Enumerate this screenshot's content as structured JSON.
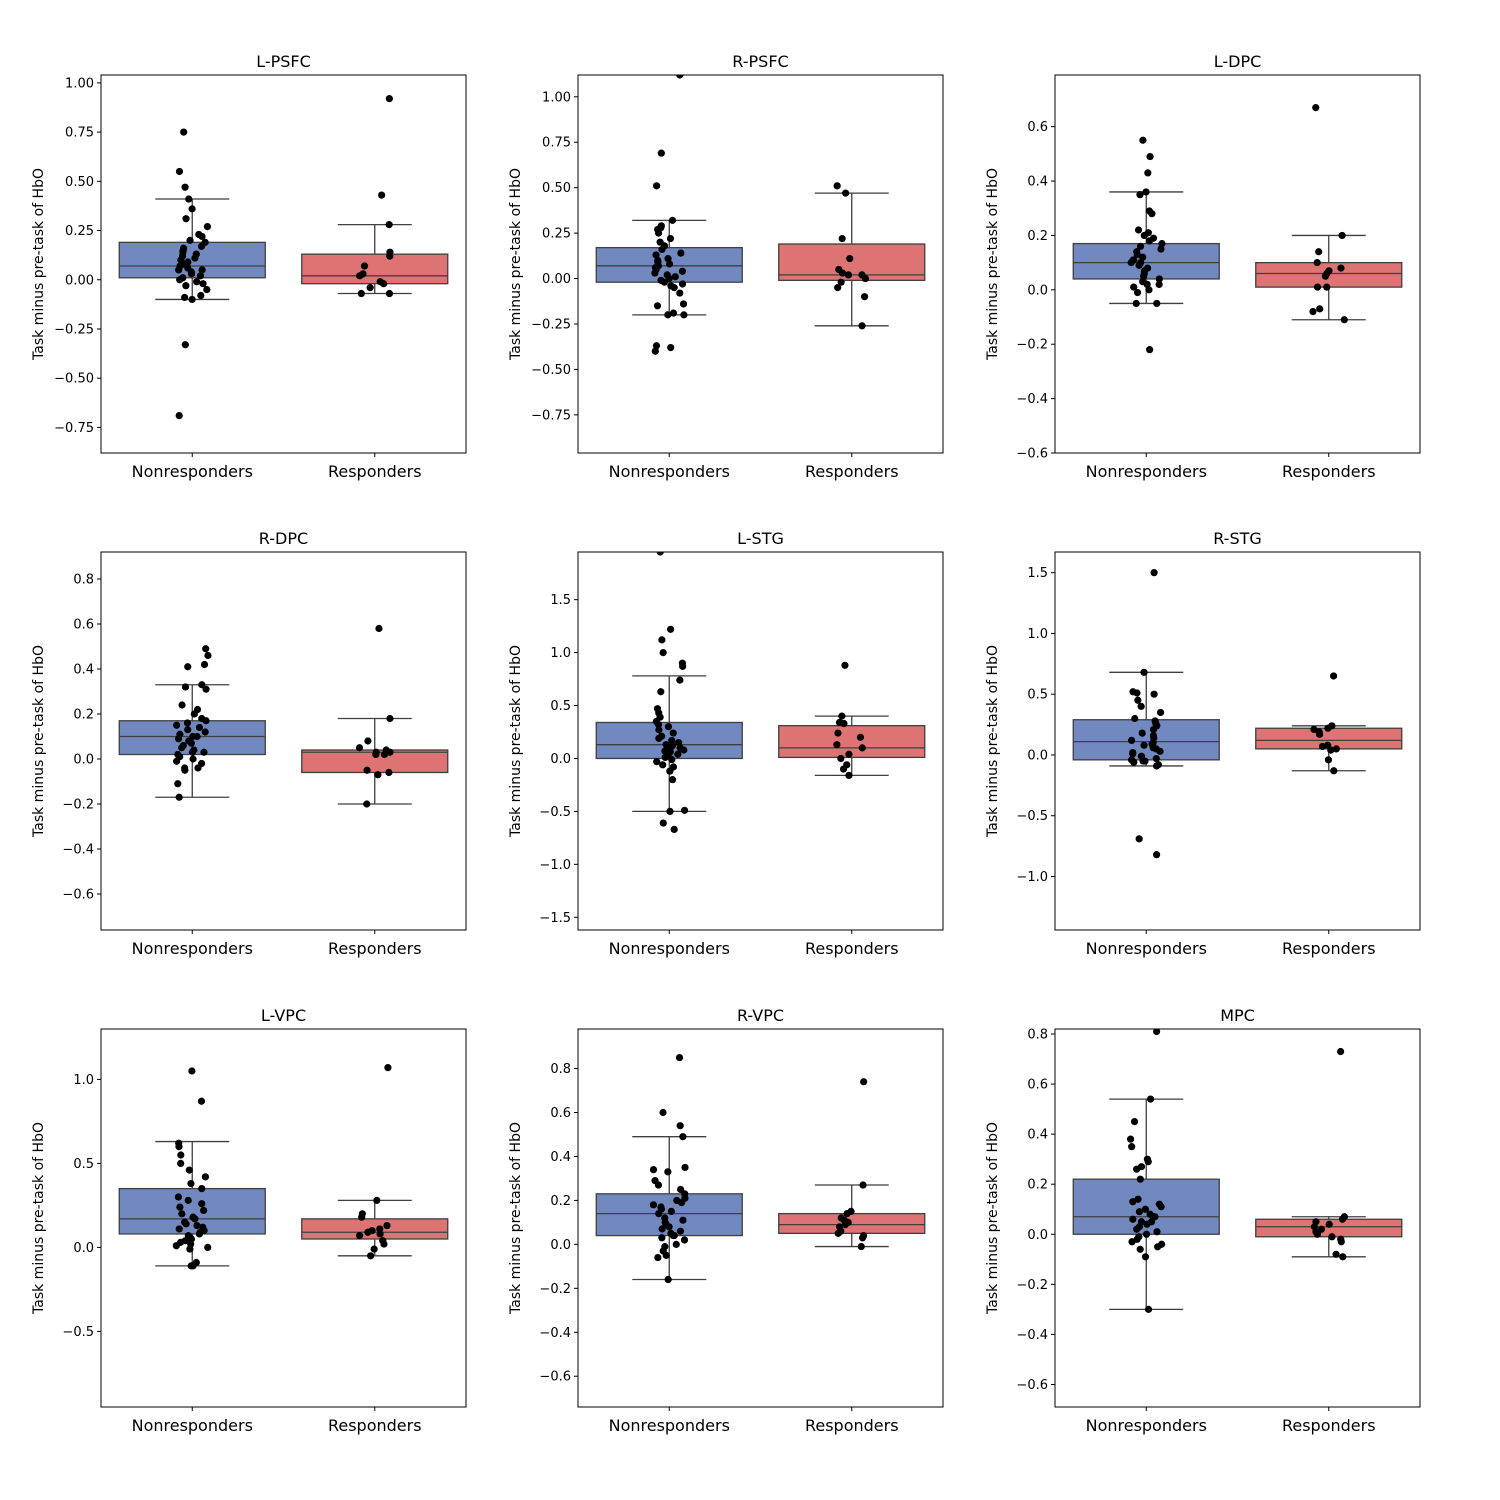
{
  "colors": {
    "nonresponders": "#7189bf",
    "responders": "#dd7373",
    "points": "#000000",
    "box_edge": "#3f3f3f"
  },
  "chart_data": [
    {
      "type": "box",
      "title": "L-PSFC",
      "ylabel": "Task minus pre-task of HbO",
      "categories": [
        "Nonresponders",
        "Responders"
      ],
      "ylim": [
        -0.88,
        1.04
      ],
      "yticks": [
        -0.75,
        -0.5,
        -0.25,
        0.0,
        0.25,
        0.5,
        0.75,
        1.0
      ],
      "ytick_labels": [
        "−0.75",
        "−0.50",
        "−0.25",
        "0.00",
        "0.25",
        "0.50",
        "0.75",
        "1.00"
      ],
      "boxes": [
        {
          "whislo": -0.1,
          "q1": 0.01,
          "med": 0.07,
          "q3": 0.19,
          "whishi": 0.41
        },
        {
          "whislo": -0.07,
          "q1": -0.02,
          "med": 0.02,
          "q3": 0.13,
          "whishi": 0.28
        }
      ],
      "points": [
        [
          0.75,
          0.55,
          0.47,
          0.41,
          0.36,
          0.31,
          0.27,
          0.23,
          0.22,
          0.2,
          0.19,
          0.17,
          0.16,
          0.15,
          0.14,
          0.13,
          0.12,
          0.11,
          0.1,
          0.09,
          0.08,
          0.07,
          0.06,
          0.05,
          0.05,
          0.04,
          0.03,
          0.02,
          0.01,
          0.0,
          -0.01,
          -0.02,
          -0.03,
          -0.05,
          -0.08,
          -0.09,
          -0.1,
          -0.33,
          -0.69
        ],
        [
          0.92,
          0.43,
          0.28,
          0.14,
          0.12,
          0.07,
          0.03,
          0.02,
          -0.01,
          -0.02,
          -0.04,
          -0.07,
          -0.07
        ]
      ]
    },
    {
      "type": "box",
      "title": "R-PSFC",
      "ylabel": "Task minus pre-task of HbO",
      "categories": [
        "Nonresponders",
        "Responders"
      ],
      "ylim": [
        -0.96,
        1.12
      ],
      "yticks": [
        -0.75,
        -0.5,
        -0.25,
        0.0,
        0.25,
        0.5,
        0.75,
        1.0
      ],
      "ytick_labels": [
        "−0.75",
        "−0.50",
        "−0.25",
        "0.00",
        "0.25",
        "0.50",
        "0.75",
        "1.00"
      ],
      "boxes": [
        {
          "whislo": -0.2,
          "q1": -0.02,
          "med": 0.07,
          "q3": 0.17,
          "whishi": 0.32
        },
        {
          "whislo": -0.26,
          "q1": -0.01,
          "med": 0.02,
          "q3": 0.19,
          "whishi": 0.47
        }
      ],
      "points": [
        [
          1.12,
          0.69,
          0.51,
          0.32,
          0.29,
          0.28,
          0.27,
          0.25,
          0.22,
          0.2,
          0.18,
          0.16,
          0.14,
          0.13,
          0.11,
          0.1,
          0.09,
          0.08,
          0.07,
          0.06,
          0.05,
          0.04,
          0.03,
          0.02,
          0.01,
          0.0,
          -0.01,
          -0.02,
          -0.03,
          -0.04,
          -0.05,
          -0.08,
          -0.14,
          -0.15,
          -0.19,
          -0.2,
          -0.2,
          -0.37,
          -0.38,
          -0.4
        ],
        [
          0.51,
          0.47,
          0.22,
          0.11,
          0.05,
          0.03,
          0.02,
          0.02,
          0.0,
          -0.02,
          -0.05,
          -0.1,
          -0.26
        ]
      ]
    },
    {
      "type": "box",
      "title": "L-DPC",
      "ylabel": "Task minus pre-task of HbO",
      "categories": [
        "Nonresponders",
        "Responders"
      ],
      "ylim": [
        -0.6,
        0.79
      ],
      "yticks": [
        -0.6,
        -0.4,
        -0.2,
        0.0,
        0.2,
        0.4,
        0.6
      ],
      "ytick_labels": [
        "−0.6",
        "−0.4",
        "−0.2",
        "0.0",
        "0.2",
        "0.4",
        "0.6"
      ],
      "boxes": [
        {
          "whislo": -0.05,
          "q1": 0.04,
          "med": 0.1,
          "q3": 0.17,
          "whishi": 0.36
        },
        {
          "whislo": -0.11,
          "q1": 0.01,
          "med": 0.06,
          "q3": 0.1,
          "whishi": 0.2
        }
      ],
      "points": [
        [
          0.55,
          0.49,
          0.43,
          0.36,
          0.35,
          0.29,
          0.28,
          0.22,
          0.21,
          0.2,
          0.19,
          0.18,
          0.17,
          0.16,
          0.15,
          0.14,
          0.13,
          0.12,
          0.11,
          0.11,
          0.1,
          0.1,
          0.09,
          0.08,
          0.07,
          0.06,
          0.05,
          0.04,
          0.03,
          0.02,
          0.02,
          0.01,
          0.0,
          -0.01,
          -0.05,
          -0.05,
          -0.22
        ],
        [
          0.67,
          0.2,
          0.14,
          0.1,
          0.08,
          0.07,
          0.06,
          0.05,
          0.01,
          0.01,
          -0.07,
          -0.08,
          -0.11
        ]
      ]
    },
    {
      "type": "box",
      "title": "R-DPC",
      "ylabel": "Task minus pre-task of HbO",
      "categories": [
        "Nonresponders",
        "Responders"
      ],
      "ylim": [
        -0.76,
        0.92
      ],
      "yticks": [
        -0.6,
        -0.4,
        -0.2,
        0.0,
        0.2,
        0.4,
        0.6,
        0.8
      ],
      "ytick_labels": [
        "−0.6",
        "−0.4",
        "−0.2",
        "0.0",
        "0.2",
        "0.4",
        "0.6",
        "0.8"
      ],
      "boxes": [
        {
          "whislo": -0.17,
          "q1": 0.02,
          "med": 0.1,
          "q3": 0.17,
          "whishi": 0.33
        },
        {
          "whislo": -0.2,
          "q1": -0.06,
          "med": 0.03,
          "q3": 0.04,
          "whishi": 0.18
        }
      ],
      "points": [
        [
          0.49,
          0.46,
          0.42,
          0.41,
          0.33,
          0.32,
          0.31,
          0.24,
          0.22,
          0.2,
          0.18,
          0.17,
          0.16,
          0.15,
          0.14,
          0.13,
          0.12,
          0.11,
          0.1,
          0.1,
          0.09,
          0.08,
          0.07,
          0.06,
          0.05,
          0.04,
          0.03,
          0.03,
          0.02,
          0.01,
          0.0,
          -0.01,
          -0.02,
          -0.04,
          -0.04,
          -0.05,
          -0.11,
          -0.17
        ],
        [
          0.58,
          0.18,
          0.08,
          0.05,
          0.04,
          0.03,
          0.03,
          0.02,
          0.02,
          -0.05,
          -0.06,
          -0.07,
          -0.2
        ]
      ]
    },
    {
      "type": "box",
      "title": "L-STG",
      "ylabel": "Task minus pre-task of HbO",
      "categories": [
        "Nonresponders",
        "Responders"
      ],
      "ylim": [
        -1.62,
        1.95
      ],
      "yticks": [
        -1.5,
        -1.0,
        -0.5,
        0.0,
        0.5,
        1.0,
        1.5
      ],
      "ytick_labels": [
        "−1.5",
        "−1.0",
        "−0.5",
        "0.0",
        "0.5",
        "1.0",
        "1.5"
      ],
      "boxes": [
        {
          "whislo": -0.5,
          "q1": 0.0,
          "med": 0.13,
          "q3": 0.34,
          "whishi": 0.78
        },
        {
          "whislo": -0.16,
          "q1": 0.01,
          "med": 0.1,
          "q3": 0.31,
          "whishi": 0.4
        }
      ],
      "points": [
        [
          1.95,
          1.22,
          1.12,
          1.0,
          0.9,
          0.87,
          0.74,
          0.63,
          0.47,
          0.43,
          0.39,
          0.35,
          0.32,
          0.3,
          0.27,
          0.24,
          0.21,
          0.19,
          0.17,
          0.15,
          0.13,
          0.12,
          0.1,
          0.09,
          0.08,
          0.07,
          0.06,
          0.04,
          0.03,
          0.01,
          -0.01,
          -0.03,
          -0.06,
          -0.08,
          -0.12,
          -0.2,
          -0.49,
          -0.5,
          -0.61,
          -0.67
        ],
        [
          0.88,
          0.4,
          0.34,
          0.33,
          0.24,
          0.2,
          0.13,
          0.1,
          0.04,
          0.0,
          -0.06,
          -0.1,
          -0.16
        ]
      ]
    },
    {
      "type": "box",
      "title": "R-STG",
      "ylabel": "Task minus pre-task of HbO",
      "categories": [
        "Nonresponders",
        "Responders"
      ],
      "ylim": [
        -1.44,
        1.67
      ],
      "yticks": [
        -1.0,
        -0.5,
        0.0,
        0.5,
        1.0,
        1.5
      ],
      "ytick_labels": [
        "−1.0",
        "−0.5",
        "0.0",
        "0.5",
        "1.0",
        "1.5"
      ],
      "boxes": [
        {
          "whislo": -0.09,
          "q1": -0.04,
          "med": 0.11,
          "q3": 0.29,
          "whishi": 0.68
        },
        {
          "whislo": -0.13,
          "q1": 0.05,
          "med": 0.12,
          "q3": 0.22,
          "whishi": 0.24
        }
      ],
      "points": [
        [
          1.5,
          0.68,
          0.52,
          0.51,
          0.5,
          0.45,
          0.4,
          0.35,
          0.3,
          0.28,
          0.26,
          0.24,
          0.21,
          0.18,
          0.16,
          0.14,
          0.12,
          0.1,
          0.09,
          0.08,
          0.06,
          0.05,
          0.03,
          0.02,
          0.01,
          -0.01,
          -0.03,
          -0.04,
          -0.05,
          -0.05,
          -0.06,
          -0.08,
          -0.09,
          -0.69,
          -0.82
        ],
        [
          0.65,
          0.24,
          0.22,
          0.21,
          0.19,
          0.17,
          0.08,
          0.07,
          0.05,
          0.04,
          -0.04,
          -0.13
        ]
      ]
    },
    {
      "type": "box",
      "title": "L-VPC",
      "ylabel": "Task minus pre-task of HbO",
      "categories": [
        "Nonresponders",
        "Responders"
      ],
      "ylim": [
        -0.95,
        1.3
      ],
      "yticks": [
        -0.5,
        0.0,
        0.5,
        1.0
      ],
      "ytick_labels": [
        "−0.5",
        "0.0",
        "0.5",
        "1.0"
      ],
      "boxes": [
        {
          "whislo": -0.11,
          "q1": 0.08,
          "med": 0.17,
          "q3": 0.35,
          "whishi": 0.63
        },
        {
          "whislo": -0.05,
          "q1": 0.05,
          "med": 0.09,
          "q3": 0.17,
          "whishi": 0.28
        }
      ],
      "points": [
        [
          1.05,
          0.87,
          0.62,
          0.6,
          0.55,
          0.5,
          0.46,
          0.42,
          0.38,
          0.35,
          0.3,
          0.28,
          0.26,
          0.24,
          0.22,
          0.2,
          0.18,
          0.17,
          0.15,
          0.14,
          0.13,
          0.12,
          0.11,
          0.1,
          0.09,
          0.08,
          0.07,
          0.06,
          0.05,
          0.04,
          0.03,
          0.02,
          0.01,
          0.0,
          -0.01,
          -0.09,
          -0.11,
          -0.11
        ],
        [
          1.07,
          0.28,
          0.2,
          0.18,
          0.13,
          0.11,
          0.1,
          0.09,
          0.08,
          0.07,
          0.04,
          0.02,
          -0.01,
          -0.05
        ]
      ]
    },
    {
      "type": "box",
      "title": "R-VPC",
      "ylabel": "Task minus pre-task of HbO",
      "categories": [
        "Nonresponders",
        "Responders"
      ],
      "ylim": [
        -0.74,
        0.98
      ],
      "yticks": [
        -0.6,
        -0.4,
        -0.2,
        0.0,
        0.2,
        0.4,
        0.6,
        0.8
      ],
      "ytick_labels": [
        "−0.6",
        "−0.4",
        "−0.2",
        "0.0",
        "0.2",
        "0.4",
        "0.6",
        "0.8"
      ],
      "boxes": [
        {
          "whislo": -0.16,
          "q1": 0.04,
          "med": 0.14,
          "q3": 0.23,
          "whishi": 0.49
        },
        {
          "whislo": -0.01,
          "q1": 0.05,
          "med": 0.09,
          "q3": 0.14,
          "whishi": 0.27
        }
      ],
      "points": [
        [
          0.85,
          0.6,
          0.54,
          0.49,
          0.35,
          0.34,
          0.33,
          0.29,
          0.27,
          0.25,
          0.23,
          0.21,
          0.2,
          0.19,
          0.18,
          0.17,
          0.16,
          0.15,
          0.14,
          0.12,
          0.11,
          0.1,
          0.09,
          0.08,
          0.07,
          0.06,
          0.05,
          0.04,
          0.04,
          0.03,
          0.02,
          0.0,
          -0.01,
          -0.03,
          -0.05,
          -0.06,
          -0.16
        ],
        [
          0.74,
          0.27,
          0.15,
          0.14,
          0.12,
          0.11,
          0.1,
          0.09,
          0.08,
          0.06,
          0.05,
          0.04,
          0.03,
          -0.01
        ]
      ]
    },
    {
      "type": "box",
      "title": "MPC",
      "ylabel": "Task minus pre-task of HbO",
      "categories": [
        "Nonresponders",
        "Responders"
      ],
      "ylim": [
        -0.69,
        0.82
      ],
      "yticks": [
        -0.6,
        -0.4,
        -0.2,
        0.0,
        0.2,
        0.4,
        0.6,
        0.8
      ],
      "ytick_labels": [
        "−0.6",
        "−0.4",
        "−0.2",
        "0.0",
        "0.2",
        "0.4",
        "0.6",
        "0.8"
      ],
      "boxes": [
        {
          "whislo": -0.3,
          "q1": 0.0,
          "med": 0.07,
          "q3": 0.22,
          "whishi": 0.54
        },
        {
          "whislo": -0.09,
          "q1": -0.01,
          "med": 0.03,
          "q3": 0.06,
          "whishi": 0.07
        }
      ],
      "points": [
        [
          0.81,
          0.54,
          0.45,
          0.38,
          0.35,
          0.3,
          0.29,
          0.27,
          0.26,
          0.22,
          0.14,
          0.13,
          0.12,
          0.11,
          0.1,
          0.09,
          0.08,
          0.07,
          0.07,
          0.06,
          0.05,
          0.05,
          0.04,
          0.03,
          0.02,
          0.01,
          0.0,
          -0.01,
          -0.02,
          -0.03,
          -0.04,
          -0.05,
          -0.06,
          -0.09,
          -0.3
        ],
        [
          0.73,
          0.07,
          0.06,
          0.05,
          0.04,
          0.03,
          0.02,
          0.01,
          0.0,
          -0.01,
          -0.02,
          -0.03,
          -0.08,
          -0.09
        ]
      ]
    }
  ]
}
